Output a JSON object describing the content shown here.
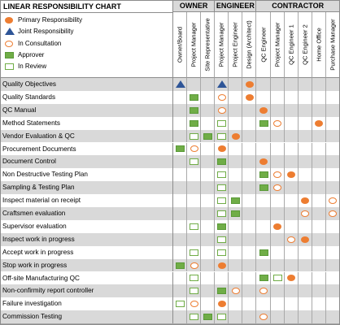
{
  "chart": {
    "title": "LINEAR RESPONSIBILITY CHART",
    "colors": {
      "primary": "#ed7d31",
      "joint": "#2e5597",
      "approver": "#70ad47",
      "row_shade": "#d9d9d9",
      "header_shade": "#d9d9d9"
    },
    "legend": [
      {
        "type": "primary",
        "icon": "orange-filled-circle-icon",
        "label": "Primary Responsibility"
      },
      {
        "type": "joint",
        "icon": "blue-triangle-icon",
        "label": "Joint Responsibility"
      },
      {
        "type": "consult",
        "icon": "orange-outline-circle-icon",
        "label": "In Consultation"
      },
      {
        "type": "approver",
        "icon": "green-filled-square-icon",
        "label": "Approver"
      },
      {
        "type": "review",
        "icon": "green-outline-square-icon",
        "label": "In Review"
      }
    ],
    "groups": [
      {
        "label": "OWNER",
        "span": 3
      },
      {
        "label": "ENGINEER",
        "span": 3
      },
      {
        "label": "CONTRACTOR",
        "span": 6
      }
    ],
    "roles": [
      "Owner/Board",
      "Project Manager",
      "Site Representative",
      "Project Manager",
      "Project Engineer",
      "Design (Architect)",
      "QC Engineer",
      "Project Manager",
      "QC Engineer 1",
      "QC Engineer 2",
      "Home Office",
      "Purchase Manager"
    ],
    "activities": [
      {
        "name": "Quality Objectives",
        "cells": [
          "joint",
          "",
          "",
          "joint",
          "",
          "primary",
          "",
          "",
          "",
          "",
          "",
          ""
        ]
      },
      {
        "name": "Quality Standards",
        "cells": [
          "",
          "approver",
          "",
          "consult",
          "",
          "primary",
          "",
          "",
          "",
          "",
          "",
          ""
        ]
      },
      {
        "name": "QC Manual",
        "cells": [
          "",
          "approver",
          "",
          "consult",
          "",
          "",
          "primary",
          "",
          "",
          "",
          "",
          ""
        ]
      },
      {
        "name": "Method Statements",
        "cells": [
          "",
          "approver",
          "",
          "review",
          "",
          "",
          "approver",
          "consult",
          "",
          "",
          "primary",
          ""
        ]
      },
      {
        "name": "Vendor Evaluation & QC",
        "cells": [
          "",
          "review",
          "approver",
          "review",
          "primary",
          "",
          "",
          "",
          "",
          "",
          "",
          ""
        ]
      },
      {
        "name": "Procurement Documents",
        "cells": [
          "approver",
          "consult",
          "",
          "primary",
          "",
          "",
          "",
          "",
          "",
          "",
          "",
          ""
        ]
      },
      {
        "name": "Document Control",
        "cells": [
          "",
          "review",
          "",
          "approver",
          "",
          "",
          "primary",
          "",
          "",
          "",
          "",
          ""
        ]
      },
      {
        "name": "Non Destructive Testing Plan",
        "cells": [
          "",
          "",
          "",
          "review",
          "",
          "",
          "approver",
          "consult",
          "primary",
          "",
          "",
          ""
        ]
      },
      {
        "name": "Sampling & Testing Plan",
        "cells": [
          "",
          "",
          "",
          "review",
          "",
          "",
          "approver",
          "consult",
          "",
          "",
          "",
          ""
        ]
      },
      {
        "name": "Inspect material on receipt",
        "cells": [
          "",
          "",
          "",
          "review",
          "approver",
          "",
          "",
          "",
          "",
          "primary",
          "",
          "consult"
        ]
      },
      {
        "name": "Craftsmen evaluation",
        "cells": [
          "",
          "",
          "",
          "review",
          "approver",
          "",
          "",
          "",
          "",
          "consult",
          "",
          "consult"
        ]
      },
      {
        "name": "Supervisor evaluation",
        "cells": [
          "",
          "review",
          "",
          "approver",
          "",
          "",
          "",
          "primary",
          "",
          "",
          "",
          ""
        ]
      },
      {
        "name": "Inspect work in progress",
        "cells": [
          "",
          "",
          "",
          "review",
          "",
          "",
          "",
          "",
          "consult",
          "primary",
          "",
          ""
        ]
      },
      {
        "name": "Accept work in progress",
        "cells": [
          "",
          "review",
          "",
          "review",
          "",
          "",
          "approver",
          "",
          "",
          "",
          "",
          ""
        ]
      },
      {
        "name": "Stop work in progress",
        "cells": [
          "approver",
          "consult",
          "",
          "primary",
          "",
          "",
          "",
          "",
          "",
          "",
          "",
          ""
        ]
      },
      {
        "name": "Off-site Manufacturing QC",
        "cells": [
          "",
          "review",
          "",
          "",
          "",
          "",
          "approver",
          "review",
          "primary",
          "",
          "",
          ""
        ]
      },
      {
        "name": "Non-confirmity report controller",
        "cells": [
          "",
          "review",
          "",
          "approver",
          "consult",
          "",
          "consult",
          "",
          "",
          "",
          "",
          ""
        ]
      },
      {
        "name": "Failure investigation",
        "cells": [
          "review",
          "consult",
          "",
          "primary",
          "",
          "",
          "",
          "",
          "",
          "",
          "",
          ""
        ]
      },
      {
        "name": "Commission Testing",
        "cells": [
          "",
          "review",
          "approver",
          "review",
          "",
          "",
          "consult",
          "",
          "",
          "",
          "",
          ""
        ]
      }
    ]
  }
}
